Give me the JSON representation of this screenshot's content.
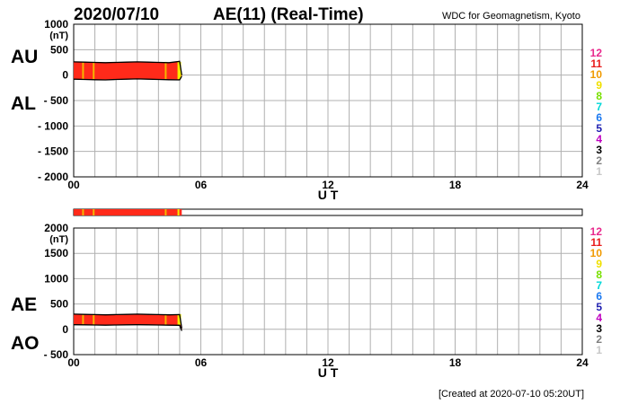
{
  "header": {
    "date": "2020/07/10",
    "title": "AE(11) (Real-Time)",
    "source": "WDC for Geomagnetism, Kyoto"
  },
  "footer": {
    "created": "[Created at 2020-07-10 05:20UT]"
  },
  "colors": {
    "fill": "#ff2a1a",
    "line": "#000000",
    "grid": "#b0b0b0",
    "yellow_mark": "#f5f000",
    "orange_mark": "#f5b400"
  },
  "station_legend": [
    {
      "label": "12",
      "color": "#e8288c"
    },
    {
      "label": "11",
      "color": "#e81c1c"
    },
    {
      "label": "10",
      "color": "#f09a00"
    },
    {
      "label": "9",
      "color": "#f0e000"
    },
    {
      "label": "8",
      "color": "#78e000"
    },
    {
      "label": "7",
      "color": "#00d8d8"
    },
    {
      "label": "6",
      "color": "#1a78f0"
    },
    {
      "label": "5",
      "color": "#2020b0"
    },
    {
      "label": "4",
      "color": "#c000c0"
    },
    {
      "label": "3",
      "color": "#000000"
    },
    {
      "label": "2",
      "color": "#808080"
    },
    {
      "label": "1",
      "color": "#c8c8c8"
    }
  ],
  "chart_data": [
    {
      "type": "area",
      "panel": "AU/AL",
      "y_title": "(nT)",
      "side_labels": [
        "AU",
        "AL"
      ],
      "xlabel": "U T",
      "xlim": [
        0,
        24
      ],
      "x_ticks": [
        {
          "v": 0,
          "label": "00"
        },
        {
          "v": 6,
          "label": "06"
        },
        {
          "v": 12,
          "label": "12"
        },
        {
          "v": 18,
          "label": "18"
        },
        {
          "v": 24,
          "label": "24"
        }
      ],
      "ylim": [
        -2000,
        1000
      ],
      "y_ticks": [
        {
          "v": 1000,
          "label": "1000"
        },
        {
          "v": 500,
          "label": "500"
        },
        {
          "v": 0,
          "label": "0"
        },
        {
          "v": -500,
          "label": "- 500"
        },
        {
          "v": -1000,
          "label": "- 1000"
        },
        {
          "v": -1500,
          "label": "- 1500"
        },
        {
          "v": -2000,
          "label": "- 2000"
        }
      ],
      "series": [
        {
          "name": "AU",
          "x": [
            0,
            0.5,
            1,
            1.5,
            2,
            2.5,
            3,
            3.5,
            4,
            4.5,
            5.0,
            5.1
          ],
          "y": [
            260,
            255,
            250,
            245,
            250,
            255,
            260,
            255,
            250,
            245,
            270,
            0
          ]
        },
        {
          "name": "AL",
          "x": [
            0,
            0.5,
            1,
            1.5,
            2,
            2.5,
            3,
            3.5,
            4,
            4.5,
            5.0,
            5.1
          ],
          "y": [
            -80,
            -85,
            -90,
            -95,
            -85,
            -80,
            -75,
            -80,
            -85,
            -90,
            -95,
            -20
          ]
        }
      ]
    },
    {
      "type": "area",
      "panel": "AE/AO",
      "y_title": "(nT)",
      "side_labels": [
        "AE",
        "AO"
      ],
      "xlabel": "U T",
      "xlim": [
        0,
        24
      ],
      "x_ticks": [
        {
          "v": 0,
          "label": "00"
        },
        {
          "v": 6,
          "label": "06"
        },
        {
          "v": 12,
          "label": "12"
        },
        {
          "v": 18,
          "label": "18"
        },
        {
          "v": 24,
          "label": "24"
        }
      ],
      "ylim": [
        -500,
        2000
      ],
      "y_ticks": [
        {
          "v": 2000,
          "label": "2000"
        },
        {
          "v": 1500,
          "label": "1500"
        },
        {
          "v": 1000,
          "label": "1000"
        },
        {
          "v": 500,
          "label": "500"
        },
        {
          "v": 0,
          "label": "0"
        },
        {
          "v": -500,
          "label": "- 500"
        }
      ],
      "series": [
        {
          "name": "AE",
          "x": [
            0,
            0.5,
            1,
            1.5,
            2,
            2.5,
            3,
            3.5,
            4,
            4.5,
            5.0,
            5.1
          ],
          "y": [
            300,
            295,
            290,
            285,
            290,
            295,
            300,
            295,
            290,
            285,
            290,
            20
          ]
        },
        {
          "name": "AO",
          "x": [
            0,
            0.5,
            1,
            1.5,
            2,
            2.5,
            3,
            3.5,
            4,
            4.5,
            5.0,
            5.1
          ],
          "y": [
            90,
            88,
            85,
            82,
            85,
            88,
            90,
            88,
            85,
            82,
            80,
            -30
          ]
        }
      ]
    }
  ]
}
